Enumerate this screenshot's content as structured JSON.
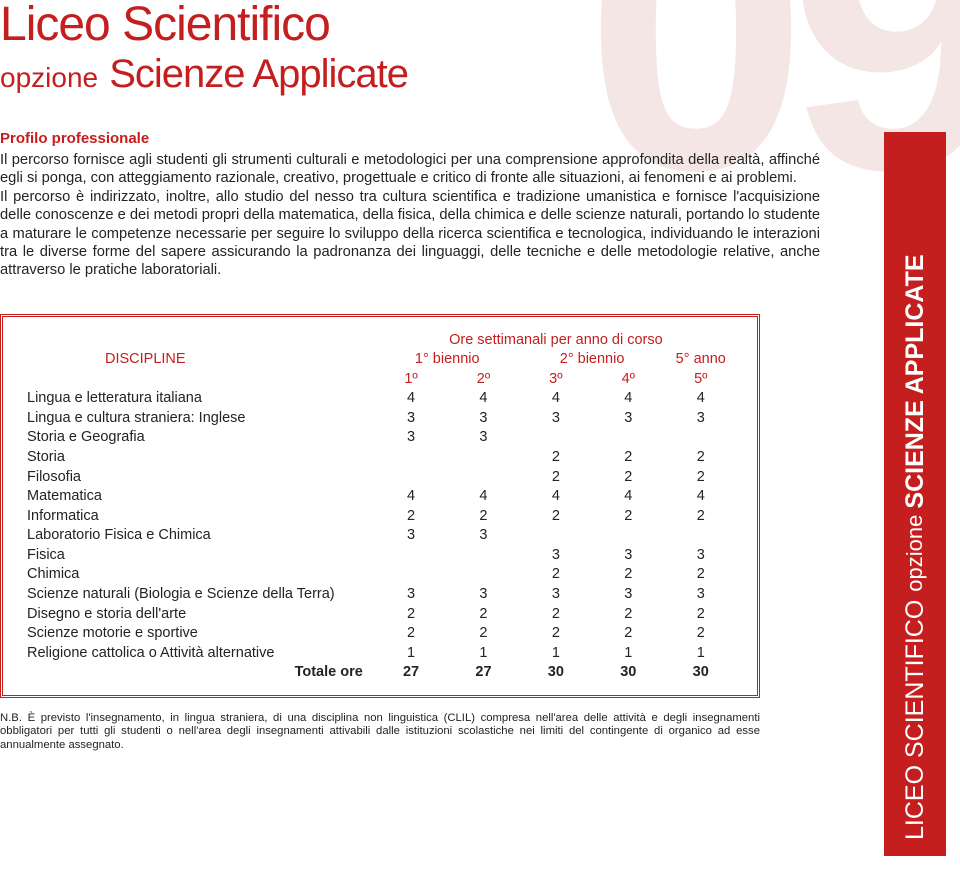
{
  "colors": {
    "accent": "#c41e1e",
    "bg_number": "#f5e6e6",
    "text": "#232323",
    "white": "#ffffff"
  },
  "bg_number": "09",
  "title": {
    "line1": "Liceo Scientifico",
    "line2_small": "opzione",
    "line2_big": "Scienze Applicate"
  },
  "profile_heading": "Profilo professionale",
  "body_p1": "Il percorso fornisce agli studenti gli strumenti culturali e metodologici per una comprensione approfondita della realtà, affinché egli si ponga, con atteggiamento razionale, creativo, progettuale e critico di fronte alle situazioni, ai fenomeni e ai problemi.",
  "body_p2": "Il percorso è indirizzato, inoltre, allo studio del nesso tra cultura scientifica e tradizione umanistica e fornisce l'acquisizione delle conoscenze e dei metodi propri della matematica, della fisica, della chimica e delle scienze naturali, portando lo studente a maturare le competenze necessarie per seguire lo sviluppo della ricerca scientifica e tecnologica, individuando le interazioni tra le diverse forme del sapere assicurando la padronanza dei linguaggi, delle tecniche e delle metodologie relative, anche attraverso le pratiche laboratoriali.",
  "table": {
    "header_group": "Ore settimanali per anno di corso",
    "discipline_label": "DISCIPLINE",
    "bienni": [
      "1° biennio",
      "2° biennio",
      "5° anno"
    ],
    "years": [
      "1º",
      "2º",
      "3º",
      "4º",
      "5º"
    ],
    "rows": [
      {
        "subject": "Lingua e letteratura italiana",
        "h": [
          "4",
          "4",
          "4",
          "4",
          "4"
        ]
      },
      {
        "subject": "Lingua e cultura straniera: Inglese",
        "h": [
          "3",
          "3",
          "3",
          "3",
          "3"
        ]
      },
      {
        "subject": "Storia e Geografia",
        "h": [
          "3",
          "3",
          "",
          "",
          ""
        ]
      },
      {
        "subject": "Storia",
        "h": [
          "",
          "",
          "2",
          "2",
          "2"
        ]
      },
      {
        "subject": "Filosofia",
        "h": [
          "",
          "",
          "2",
          "2",
          "2"
        ]
      },
      {
        "subject": "Matematica",
        "h": [
          "4",
          "4",
          "4",
          "4",
          "4"
        ]
      },
      {
        "subject": "Informatica",
        "h": [
          "2",
          "2",
          "2",
          "2",
          "2"
        ]
      },
      {
        "subject": "Laboratorio Fisica e Chimica",
        "h": [
          "3",
          "3",
          "",
          "",
          ""
        ]
      },
      {
        "subject": "Fisica",
        "h": [
          "",
          "",
          "3",
          "3",
          "3"
        ]
      },
      {
        "subject": "Chimica",
        "h": [
          "",
          "",
          "2",
          "2",
          "2"
        ]
      },
      {
        "subject": "Scienze naturali (Biologia e Scienze della Terra)",
        "h": [
          "3",
          "3",
          "3",
          "3",
          "3"
        ]
      },
      {
        "subject": "Disegno e storia dell'arte",
        "h": [
          "2",
          "2",
          "2",
          "2",
          "2"
        ]
      },
      {
        "subject": "Scienze motorie e sportive",
        "h": [
          "2",
          "2",
          "2",
          "2",
          "2"
        ]
      },
      {
        "subject": "Religione cattolica o Attività alternative",
        "h": [
          "1",
          "1",
          "1",
          "1",
          "1"
        ]
      }
    ],
    "total_label": "Totale ore",
    "total": [
      "27",
      "27",
      "30",
      "30",
      "30"
    ]
  },
  "note": "N.B. È previsto l'insegnamento, in lingua straniera, di una disciplina non linguistica (CLIL) compresa nell'area delle attività e degli insegnamenti obbligatori per tutti gli studenti o nell'area degli insegnamenti attivabili dalle istituzioni scolastiche nei limiti del contingente di organico ad esse annualmente assegnato.",
  "sidebar": {
    "w1": "LICEO SCIENTIFICO",
    "w2": "opzione",
    "w3": "SCIENZE APPLICATE"
  }
}
